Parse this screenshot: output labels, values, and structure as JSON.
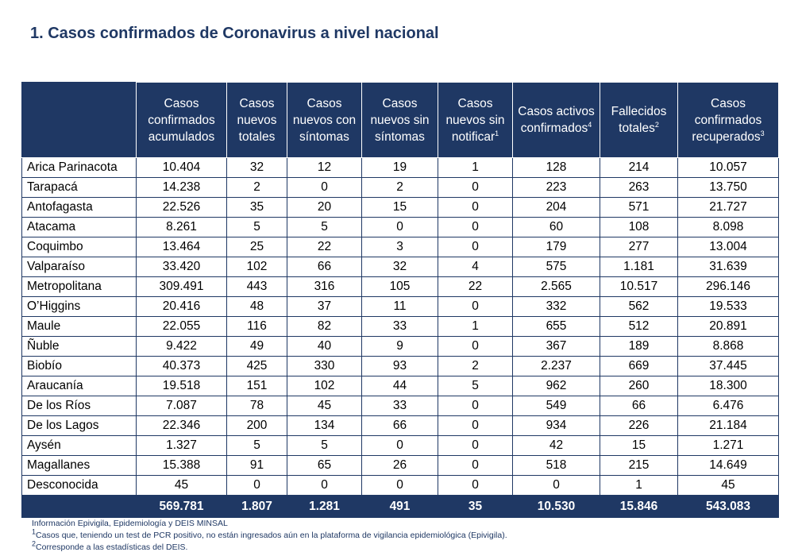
{
  "title": "1.  Casos confirmados de Coronavirus a nivel nacional",
  "columns": [
    {
      "label": "Casos confirmados acumulados",
      "sup": ""
    },
    {
      "label": "Casos nuevos totales",
      "sup": ""
    },
    {
      "label": "Casos nuevos con síntomas",
      "sup": ""
    },
    {
      "label": "Casos nuevos sin síntomas",
      "sup": ""
    },
    {
      "label": "Casos nuevos sin notificar",
      "sup": "1"
    },
    {
      "label": "Casos activos confirmados",
      "sup": "4"
    },
    {
      "label": "Fallecidos totales",
      "sup": "2"
    },
    {
      "label": "Casos confirmados recuperados",
      "sup": "3"
    }
  ],
  "rows": [
    {
      "region": "Arica Parinacota",
      "values": [
        "10.404",
        "32",
        "12",
        "19",
        "1",
        "128",
        "214",
        "10.057"
      ]
    },
    {
      "region": "Tarapacá",
      "values": [
        "14.238",
        "2",
        "0",
        "2",
        "0",
        "223",
        "263",
        "13.750"
      ]
    },
    {
      "region": "Antofagasta",
      "values": [
        "22.526",
        "35",
        "20",
        "15",
        "0",
        "204",
        "571",
        "21.727"
      ]
    },
    {
      "region": "Atacama",
      "values": [
        "8.261",
        "5",
        "5",
        "0",
        "0",
        "60",
        "108",
        "8.098"
      ]
    },
    {
      "region": "Coquimbo",
      "values": [
        "13.464",
        "25",
        "22",
        "3",
        "0",
        "179",
        "277",
        "13.004"
      ]
    },
    {
      "region": "Valparaíso",
      "values": [
        "33.420",
        "102",
        "66",
        "32",
        "4",
        "575",
        "1.181",
        "31.639"
      ]
    },
    {
      "region": "Metropolitana",
      "values": [
        "309.491",
        "443",
        "316",
        "105",
        "22",
        "2.565",
        "10.517",
        "296.146"
      ]
    },
    {
      "region": "O’Higgins",
      "values": [
        "20.416",
        "48",
        "37",
        "11",
        "0",
        "332",
        "562",
        "19.533"
      ]
    },
    {
      "region": "Maule",
      "values": [
        "22.055",
        "116",
        "82",
        "33",
        "1",
        "655",
        "512",
        "20.891"
      ]
    },
    {
      "region": "Ñuble",
      "values": [
        "9.422",
        "49",
        "40",
        "9",
        "0",
        "367",
        "189",
        "8.868"
      ]
    },
    {
      "region": "Biobío",
      "values": [
        "40.373",
        "425",
        "330",
        "93",
        "2",
        "2.237",
        "669",
        "37.445"
      ]
    },
    {
      "region": "Araucanía",
      "values": [
        "19.518",
        "151",
        "102",
        "44",
        "5",
        "962",
        "260",
        "18.300"
      ]
    },
    {
      "region": "De los Ríos",
      "values": [
        "7.087",
        "78",
        "45",
        "33",
        "0",
        "549",
        "66",
        "6.476"
      ]
    },
    {
      "region": "De los Lagos",
      "values": [
        "22.346",
        "200",
        "134",
        "66",
        "0",
        "934",
        "226",
        "21.184"
      ]
    },
    {
      "region": "Aysén",
      "values": [
        "1.327",
        "5",
        "5",
        "0",
        "0",
        "42",
        "15",
        "1.271"
      ]
    },
    {
      "region": "Magallanes",
      "values": [
        "15.388",
        "91",
        "65",
        "26",
        "0",
        "518",
        "215",
        "14.649"
      ]
    },
    {
      "region": "Desconocida",
      "values": [
        "45",
        "0",
        "0",
        "0",
        "0",
        "0",
        "1",
        "45"
      ]
    }
  ],
  "totals": [
    "569.781",
    "1.807",
    "1.281",
    "491",
    "35",
    "10.530",
    "15.846",
    "543.083"
  ],
  "notes": {
    "source": "Información Epivigila, Epidemiología y DEIS MINSAL",
    "note1_sup": "1",
    "note1": "Casos que, teniendo un test de PCR positivo, no están ingresados aún en la plataforma de vigilancia epidemiológica (Epivigila).",
    "note2_sup": "2",
    "note2": "Corresponde a las estadísticas del DEIS."
  },
  "colors": {
    "header_bg": "#1f3864",
    "title": "#1f3864"
  }
}
